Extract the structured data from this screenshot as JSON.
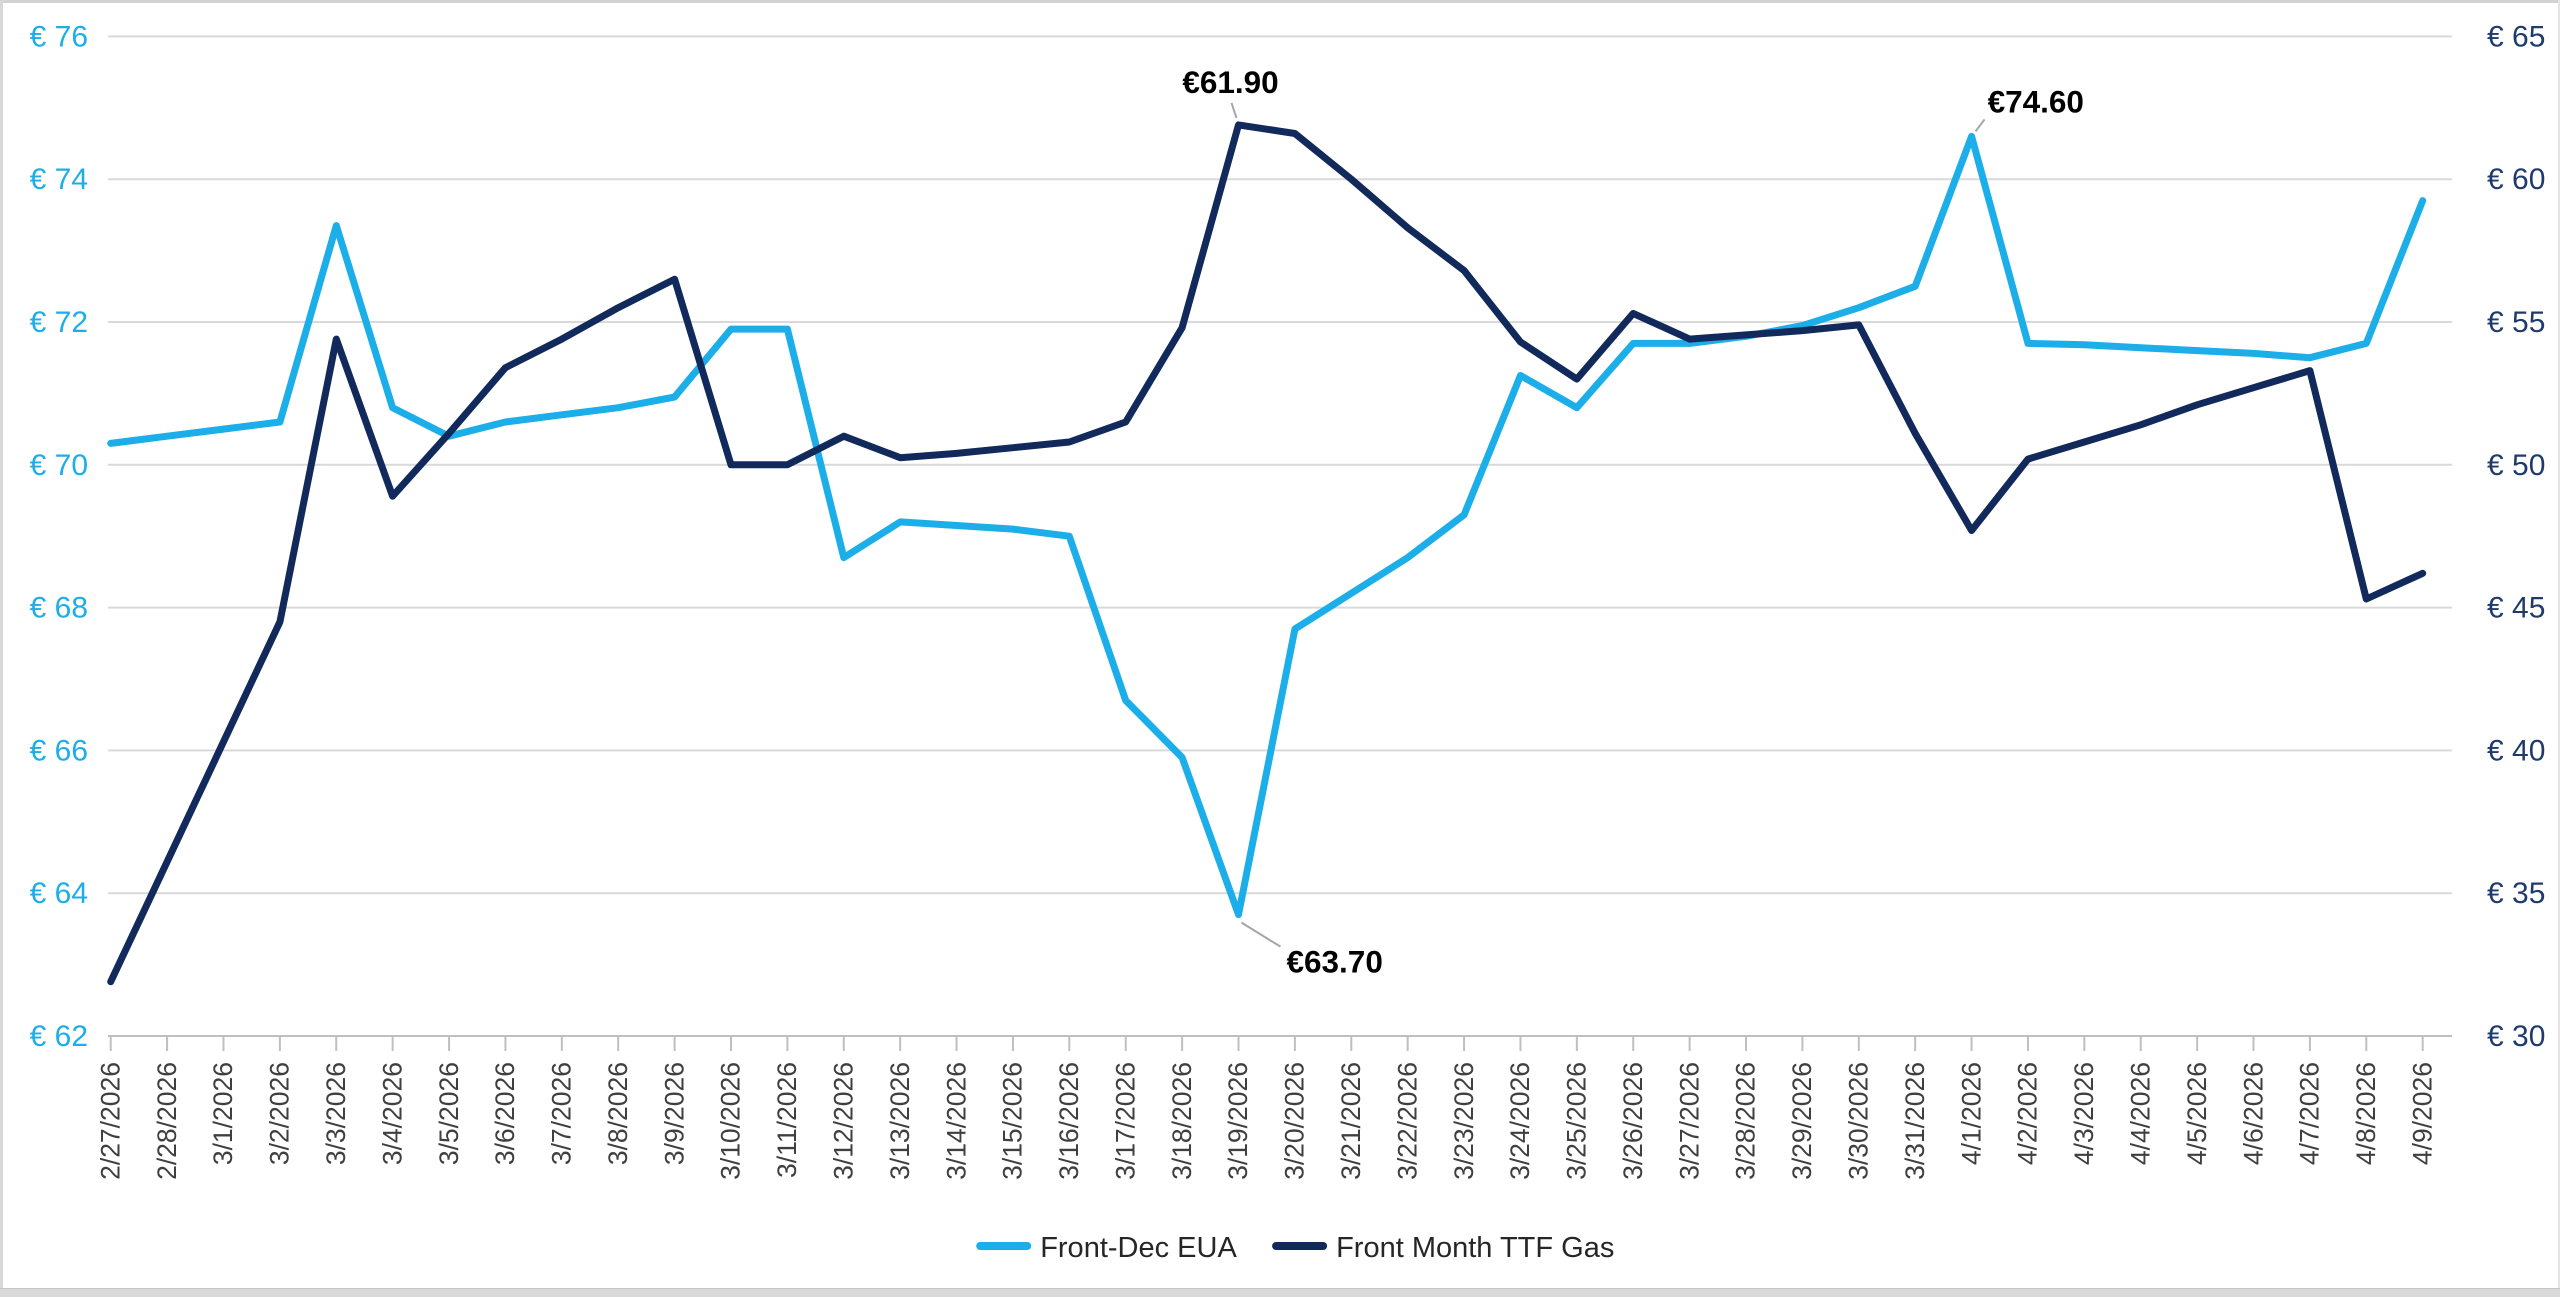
{
  "chart_data": {
    "type": "line",
    "title": "",
    "x_labels": [
      "2/27/2026",
      "2/28/2026",
      "3/1/2026",
      "3/2/2026",
      "3/3/2026",
      "3/4/2026",
      "3/5/2026",
      "3/6/2026",
      "3/7/2026",
      "3/8/2026",
      "3/9/2026",
      "3/10/2026",
      "3/11/2026",
      "3/12/2026",
      "3/13/2026",
      "3/14/2026",
      "3/15/2026",
      "3/16/2026",
      "3/17/2026",
      "3/18/2026",
      "3/19/2026",
      "3/20/2026",
      "3/21/2026",
      "3/22/2026",
      "3/23/2026",
      "3/24/2026",
      "3/25/2026",
      "3/26/2026",
      "3/27/2026",
      "3/28/2026",
      "3/29/2026",
      "3/30/2026",
      "3/31/2026",
      "4/1/2026",
      "4/2/2026",
      "4/3/2026",
      "4/4/2026",
      "4/5/2026",
      "4/6/2026",
      "4/7/2026",
      "4/8/2026",
      "4/9/2026"
    ],
    "series": [
      {
        "name": "Front-Dec EUA",
        "axis": "left",
        "color": "#1caee9",
        "values": [
          70.3,
          70.4,
          70.5,
          70.6,
          73.35,
          70.8,
          70.4,
          70.6,
          70.7,
          70.8,
          70.95,
          71.9,
          71.9,
          68.7,
          69.2,
          69.15,
          69.1,
          69.0,
          66.7,
          65.9,
          63.7,
          67.7,
          68.2,
          68.7,
          69.3,
          71.25,
          70.8,
          71.7,
          71.7,
          71.8,
          71.95,
          72.2,
          72.5,
          74.6,
          71.7,
          71.68,
          71.64,
          71.6,
          71.56,
          71.5,
          71.7,
          73.7
        ]
      },
      {
        "name": "Front Month TTF Gas",
        "axis": "right",
        "color": "#12295b",
        "values": [
          31.9,
          36.1,
          40.3,
          44.5,
          54.4,
          48.9,
          51.1,
          53.4,
          54.4,
          55.5,
          56.5,
          50.0,
          50.0,
          51.0,
          50.25,
          50.4,
          50.6,
          50.8,
          51.5,
          54.8,
          61.9,
          61.6,
          60.0,
          58.3,
          56.8,
          54.3,
          53.0,
          55.3,
          54.4,
          54.55,
          54.7,
          54.9,
          51.1,
          47.7,
          50.2,
          50.8,
          51.4,
          52.1,
          52.7,
          53.3,
          45.3,
          46.2
        ]
      }
    ],
    "left_axis": {
      "min": 62,
      "max": 76,
      "step": 2,
      "color": "#1caee9",
      "tick_labels": [
        "€ 62",
        "€ 64",
        "€ 66",
        "€ 68",
        "€ 70",
        "€ 72",
        "€ 74",
        "€ 76"
      ]
    },
    "right_axis": {
      "min": 30,
      "max": 65,
      "step": 5,
      "color": "#1f3a6d",
      "tick_labels": [
        "€ 30",
        "€ 35",
        "€ 40",
        "€ 45",
        "€ 50",
        "€ 55",
        "€ 60",
        "€ 65"
      ]
    },
    "annotations": [
      {
        "text": "€61.90",
        "series": 1,
        "index": 20,
        "placement": "above"
      },
      {
        "text": "€63.70",
        "series": 0,
        "index": 20,
        "placement": "below-right"
      },
      {
        "text": "€74.60",
        "series": 0,
        "index": 33,
        "placement": "above-right"
      }
    ],
    "legend": [
      {
        "label": "Front-Dec EUA",
        "color": "#1caee9"
      },
      {
        "label": "Front Month TTF Gas",
        "color": "#12295b"
      }
    ],
    "legend_position": "bottom",
    "grid": true,
    "x_tick_label_color": "#3f3f3f",
    "annotation_color": "#000000",
    "gridline_color": "#d9d9d9",
    "axis_line_color": "#bfbfbf",
    "leader_line_color": "#a6a6a6"
  }
}
